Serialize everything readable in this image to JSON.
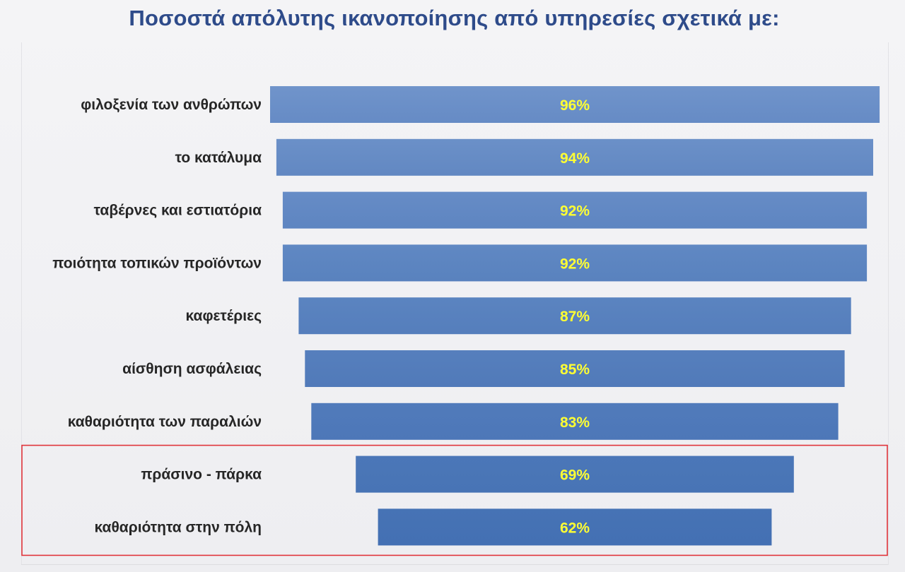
{
  "chart_data": {
    "type": "bar",
    "orientation": "horizontal",
    "layout": "centered-funnel",
    "title": "Ποσοστά απόλυτης ικανοποίησης από υπηρεσίες σχετικά με:",
    "categories": [
      "φιλοξενία των ανθρώπων",
      "το κατάλυμα",
      "ταβέρνες και εστιατόρια",
      "ποιότητα τοπικών προϊόντων",
      "καφετέριες",
      "αίσθηση ασφάλειας",
      "καθαριότητα των παραλιών",
      "πράσινο - πάρκα",
      "καθαριότητα στην πόλη"
    ],
    "values": [
      96,
      94,
      92,
      92,
      87,
      85,
      83,
      69,
      62
    ],
    "value_labels": [
      "96%",
      "94%",
      "92%",
      "92%",
      "87%",
      "85%",
      "83%",
      "69%",
      "62%"
    ],
    "unit": "%",
    "xlim": [
      0,
      100
    ],
    "grid": false,
    "legend": "none",
    "highlighted_categories": [
      "πράσινο - πάρκα",
      "καθαριότητα στην πόλη"
    ],
    "colors": {
      "title": "#2e4b8a",
      "bar_top": "#7094cb",
      "bar_bottom": "#4673b5",
      "value_label": "#ffff33",
      "category_label": "#262626",
      "highlight_box": "#e0343b"
    }
  }
}
